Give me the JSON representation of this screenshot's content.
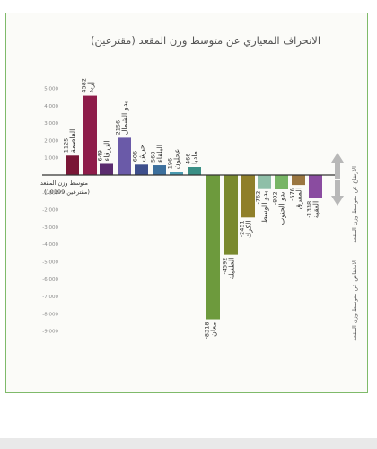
{
  "chart_data": {
    "type": "bar",
    "title": "الانحراف المعياري عن متوسط وزن المقعد (مقترعين)",
    "baseline_label": "متوسط وزن المقعد",
    "baseline_sublabel": "(مقترعين 10199)",
    "ylim": [
      -9000,
      5000
    ],
    "y_ticks": [
      {
        "value": 5000,
        "label": "5,000"
      },
      {
        "value": 4000,
        "label": "4,000"
      },
      {
        "value": 3000,
        "label": "3,000"
      },
      {
        "value": 2000,
        "label": "2,000"
      },
      {
        "value": 1000,
        "label": "1,000"
      },
      {
        "value": -1000,
        "label": "-1,000"
      },
      {
        "value": -2000,
        "label": "-2,000"
      },
      {
        "value": -3000,
        "label": "-3,000"
      },
      {
        "value": -4000,
        "label": "-4,000"
      },
      {
        "value": -5000,
        "label": "-5,000"
      },
      {
        "value": -6000,
        "label": "-6,000"
      },
      {
        "value": -7000,
        "label": "-7,000"
      },
      {
        "value": -8000,
        "label": "-8,000"
      },
      {
        "value": -9000,
        "label": "-9,000"
      }
    ],
    "bars": [
      {
        "name": "العاصمة",
        "value": 1125,
        "label": "1125",
        "color": "#7a1636"
      },
      {
        "name": "إربد",
        "value": 4582,
        "label": "4582",
        "color": "#8e1c4a"
      },
      {
        "name": "الزرقاء",
        "value": 649,
        "label": "649",
        "color": "#5b2c6f"
      },
      {
        "name": "بدو الشمال",
        "value": 2156,
        "label": "2156",
        "color": "#6a5aa8"
      },
      {
        "name": "جرش",
        "value": 606,
        "label": "606",
        "color": "#3e4f8c"
      },
      {
        "name": "البلقاء",
        "value": 568,
        "label": "568",
        "color": "#3c6f9c"
      },
      {
        "name": "عجلون",
        "value": 196,
        "label": "196",
        "color": "#4a9ab0"
      },
      {
        "name": "مادبا",
        "value": 466,
        "label": "466",
        "color": "#3a8f85"
      },
      {
        "name": "معان",
        "value": -8318,
        "label": "-8318",
        "color": "#6d9a3d"
      },
      {
        "name": "الطفيلة",
        "value": -4592,
        "label": "-4592",
        "color": "#7a8a2e"
      },
      {
        "name": "الكرك",
        "value": -2451,
        "label": "-2451",
        "color": "#8f7f2a"
      },
      {
        "name": "بدو الوسط",
        "value": -762,
        "label": "-762",
        "color": "#8fbfa8"
      },
      {
        "name": "بدو الجنوب",
        "value": -802,
        "label": "-802",
        "color": "#77b565"
      },
      {
        "name": "المفرق",
        "value": -576,
        "label": "-576",
        "color": "#9a7640"
      },
      {
        "name": "العقبة",
        "value": -1338,
        "label": "-1338",
        "color": "#8a4ca0"
      }
    ],
    "annotations": {
      "above": "الارتفاع عن متوسط وزن المقعد",
      "below": "الانخفاض عن متوسط وزن المقعد"
    },
    "grid": false,
    "legend": "none"
  }
}
